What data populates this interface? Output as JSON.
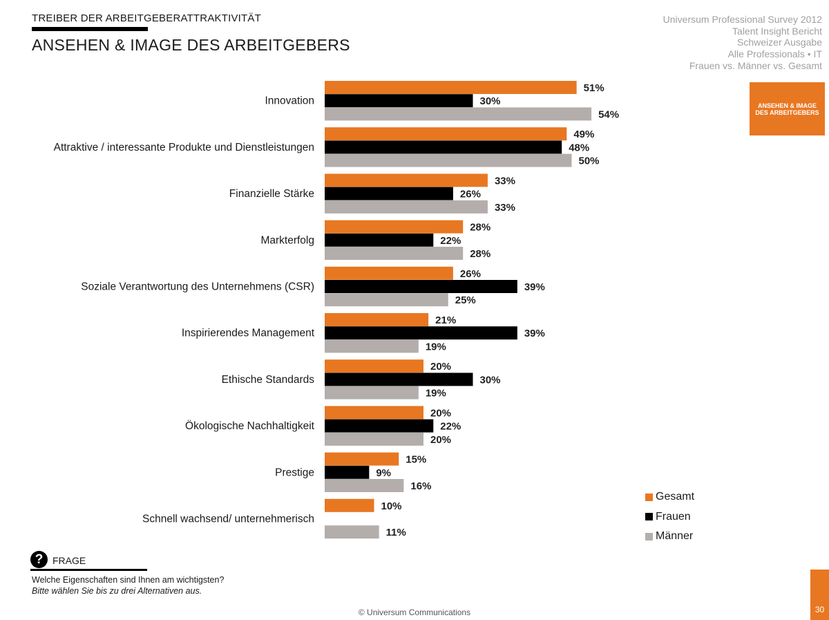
{
  "header": {
    "kicker": "TREIBER DER ARBEITGEBERATTRAKTIVITÄT",
    "title": "ANSEHEN & IMAGE DES ARBEITGEBERS"
  },
  "meta_lines": [
    "Universum Professional Survey 2012",
    "Talent Insight Bericht",
    "Schweizer Ausgabe",
    "Alle Professionals • IT",
    "Frauen vs. Männer vs. Gesamt"
  ],
  "section_tab": "ANSEHEN & IMAGE DES ARBEITGEBERS",
  "colors": {
    "gesamt": "#e87722",
    "frauen": "#000000",
    "maenner": "#b3aeab"
  },
  "chart_data": {
    "type": "bar",
    "orientation": "horizontal",
    "categories": [
      "Innovation",
      "Attraktive / interessante Produkte und Dienstleistungen",
      "Finanzielle Stärke",
      "Markterfolg",
      "Soziale Verantwortung des Unternehmens (CSR)",
      "Inspirierendes Management",
      "Ethische Standards",
      "Ökologische Nachhaltigkeit",
      "Prestige",
      "Schnell wachsend/ unternehmerisch"
    ],
    "series": [
      {
        "name": "Gesamt",
        "values": [
          51,
          49,
          33,
          28,
          26,
          21,
          20,
          20,
          15,
          10
        ]
      },
      {
        "name": "Frauen",
        "values": [
          30,
          48,
          26,
          22,
          39,
          39,
          30,
          22,
          9,
          null
        ]
      },
      {
        "name": "Männer",
        "values": [
          54,
          50,
          33,
          28,
          25,
          19,
          19,
          20,
          16,
          11
        ]
      }
    ],
    "value_suffix": "%",
    "legend_position": "bottom-right",
    "grid": false
  },
  "frage": {
    "label": "FRAGE",
    "question": "Welche Eigenschaften sind Ihnen am wichtigsten?",
    "instruction": "Bitte wählen Sie bis zu drei Alternativen aus."
  },
  "footer": "© Universum Communications",
  "page_number": "30"
}
